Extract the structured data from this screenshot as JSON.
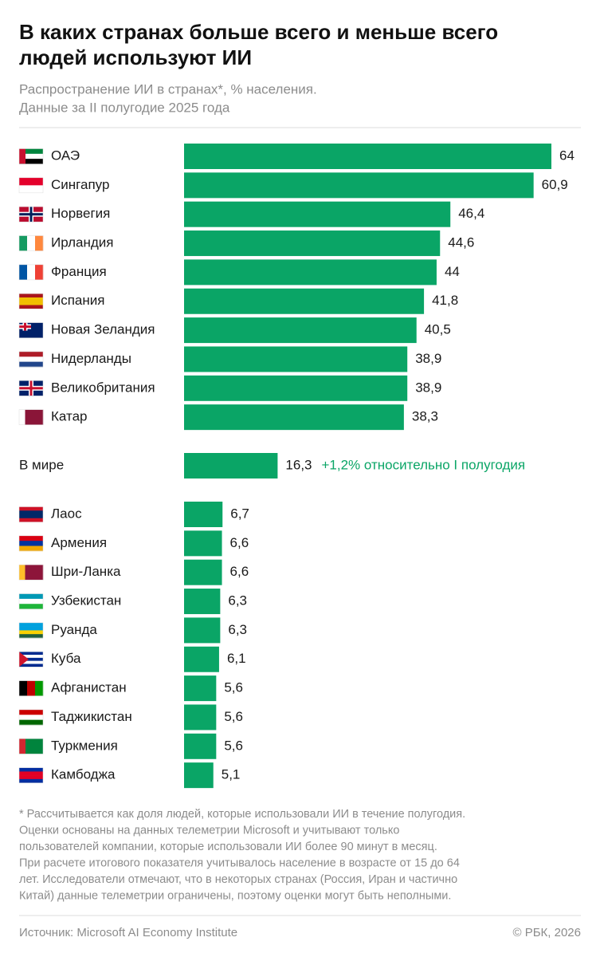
{
  "title": [
    "В каких странах больше всего и меньше всего",
    "людей используют ИИ"
  ],
  "subtitle": [
    "Распространение ИИ в странах*, % населения.",
    "Данные за II полугодие 2025 года"
  ],
  "chart_data": {
    "type": "bar",
    "orientation": "horizontal",
    "color": "#0aa566",
    "categories": [
      "ОАЭ",
      "Сингапур",
      "Норвегия",
      "Ирландия",
      "Франция",
      "Испания",
      "Новая Зеландия",
      "Нидерланды",
      "Великобритания",
      "Катар",
      "В мире",
      "Лаос",
      "Армения",
      "Шри-Ланка",
      "Узбекистан",
      "Руанда",
      "Куба",
      "Афганистан",
      "Таджикистан",
      "Туркмения",
      "Камбоджа"
    ],
    "values": [
      64,
      60.9,
      46.4,
      44.6,
      44,
      41.8,
      40.5,
      38.9,
      38.9,
      38.3,
      16.3,
      6.7,
      6.6,
      6.6,
      6.3,
      6.3,
      6.1,
      5.6,
      5.6,
      5.6,
      5.1
    ],
    "value_labels": [
      "64",
      "60,9",
      "46,4",
      "44,6",
      "44",
      "41,8",
      "40,5",
      "38,9",
      "38,9",
      "38,3",
      "16,3",
      "6,7",
      "6,6",
      "6,6",
      "6,3",
      "6,3",
      "6,1",
      "5,6",
      "5,6",
      "5,6",
      "5,1"
    ],
    "annotation": "+1,2% относительно I полугодия"
  },
  "footnote": [
    "* Рассчитывается как доля людей, которые использовали ИИ в течение полугодия.",
    "Оценки основаны на данных телеметрии Microsoft и учитывают только",
    "пользователей компании, которые использовали ИИ более 90 минут в месяц.",
    "При расчете итогового показателя учитывалось население в возрасте от 15 до 64",
    "лет. Исследователи отмечают, что в некоторых странах (Россия, Иран и частично",
    "Китай) данные телеметрии ограничены, поэтому оценки могут быть неполными."
  ],
  "source": "Источник: Microsoft AI Economy Institute",
  "copyright": "© РБК, 2026"
}
